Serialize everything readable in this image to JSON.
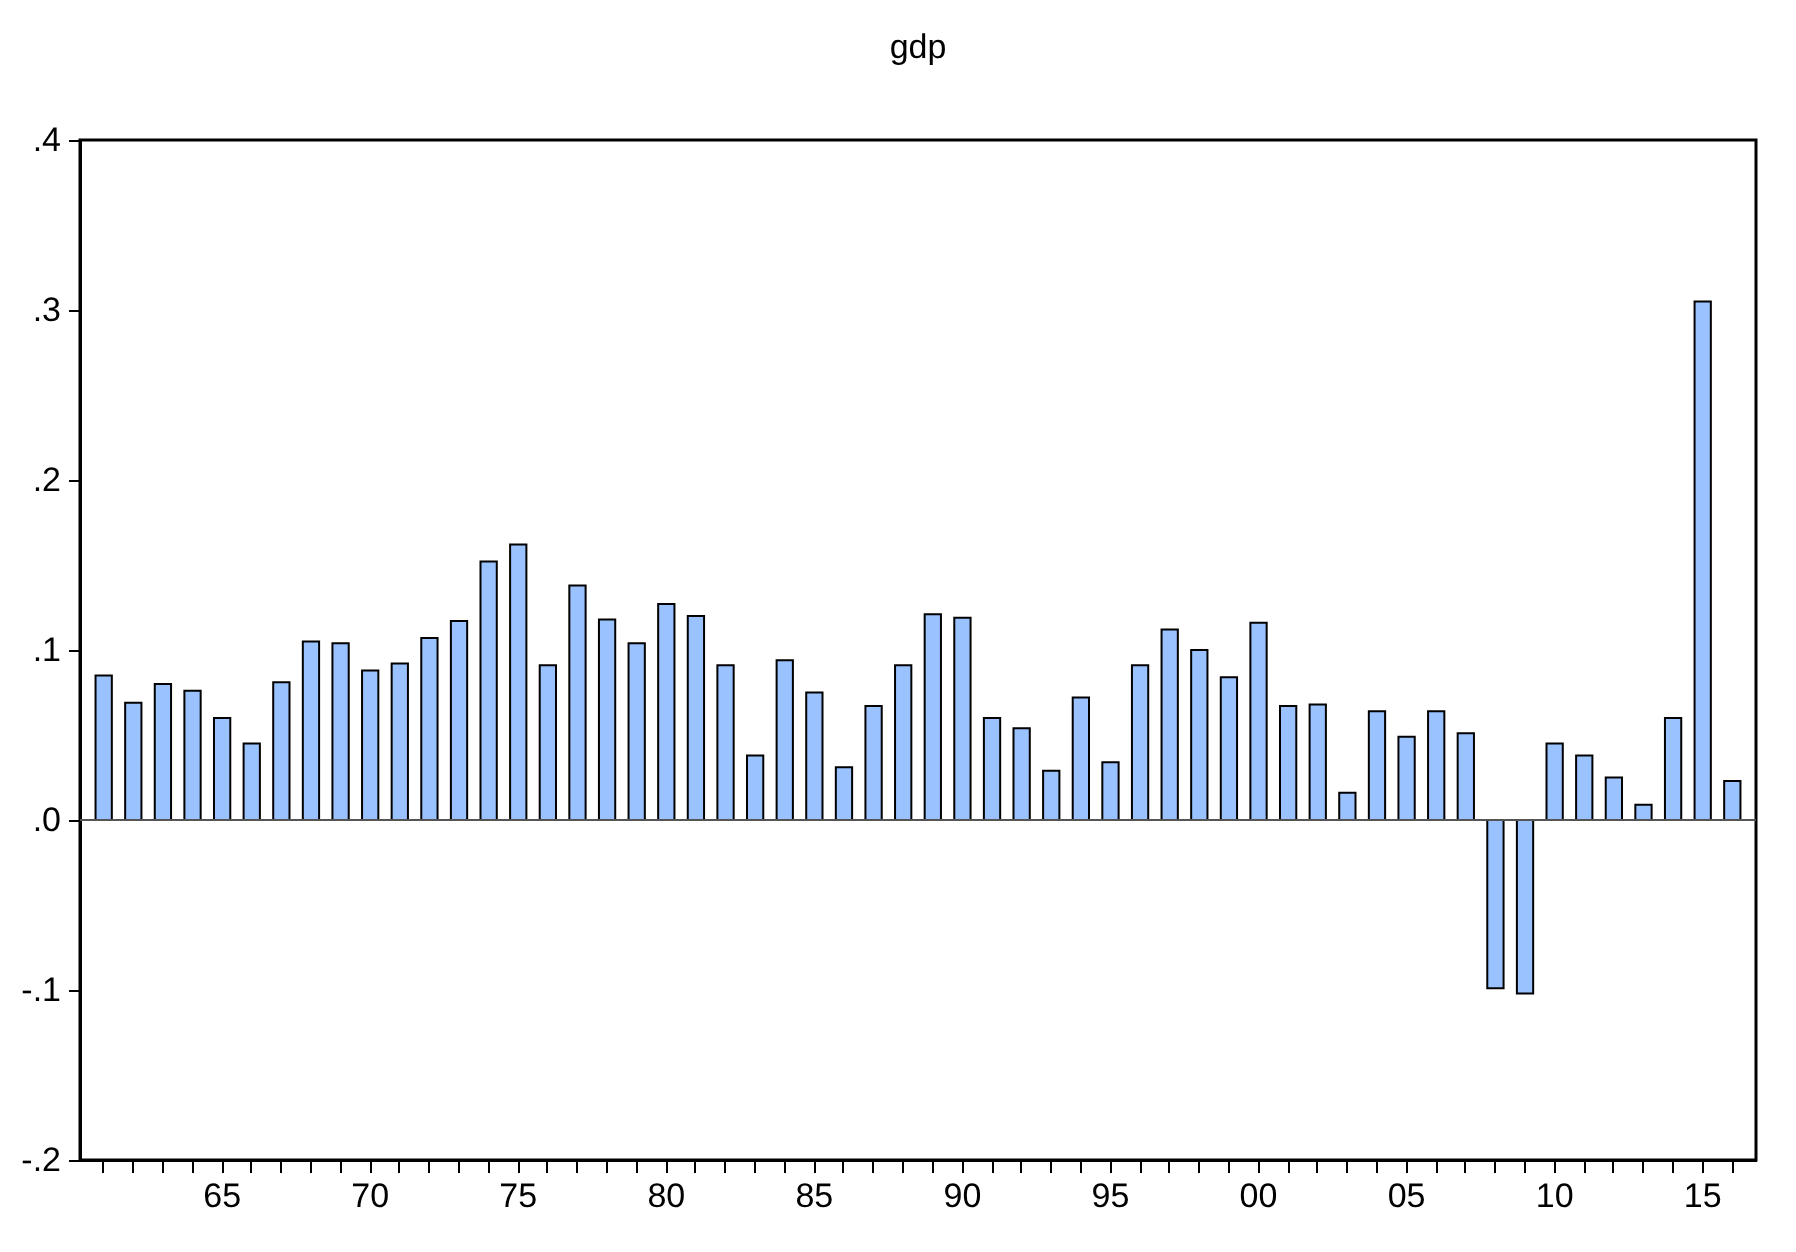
{
  "chart_data": {
    "type": "bar",
    "title": "gdp",
    "categories": [
      null,
      null,
      null,
      null,
      "65",
      null,
      null,
      null,
      null,
      "70",
      null,
      null,
      null,
      null,
      "75",
      null,
      null,
      null,
      null,
      "80",
      null,
      null,
      null,
      null,
      "85",
      null,
      null,
      null,
      null,
      "90",
      null,
      null,
      null,
      null,
      "95",
      null,
      null,
      null,
      null,
      "00",
      null,
      null,
      null,
      null,
      "05",
      null,
      null,
      null,
      null,
      "10",
      null,
      null,
      null,
      null,
      "15",
      null
    ],
    "values": [
      0.085,
      0.069,
      0.08,
      0.076,
      0.06,
      0.045,
      0.081,
      0.105,
      0.104,
      0.088,
      0.092,
      0.107,
      0.117,
      0.152,
      0.162,
      0.091,
      0.138,
      0.118,
      0.104,
      0.127,
      0.12,
      0.091,
      0.038,
      0.094,
      0.075,
      0.031,
      0.067,
      0.091,
      0.121,
      0.119,
      0.06,
      0.054,
      0.029,
      0.072,
      0.034,
      0.091,
      0.112,
      0.1,
      0.084,
      0.116,
      0.067,
      0.068,
      0.016,
      0.064,
      0.049,
      0.064,
      0.051,
      -0.099,
      -0.102,
      0.045,
      0.038,
      0.025,
      0.009,
      0.06,
      0.305,
      0.023
    ],
    "color": "#99c2ff",
    "ylim": [
      -0.2,
      0.4
    ],
    "yticks": [
      {
        "value": -0.2,
        "label": "-.2"
      },
      {
        "value": -0.1,
        "label": "-.1"
      },
      {
        "value": 0,
        "label": ".0"
      },
      {
        "value": 0.1,
        "label": ".1"
      },
      {
        "value": 0.2,
        "label": ".2"
      },
      {
        "value": 0.3,
        "label": ".3"
      },
      {
        "value": 0.4,
        "label": ".4"
      }
    ]
  }
}
